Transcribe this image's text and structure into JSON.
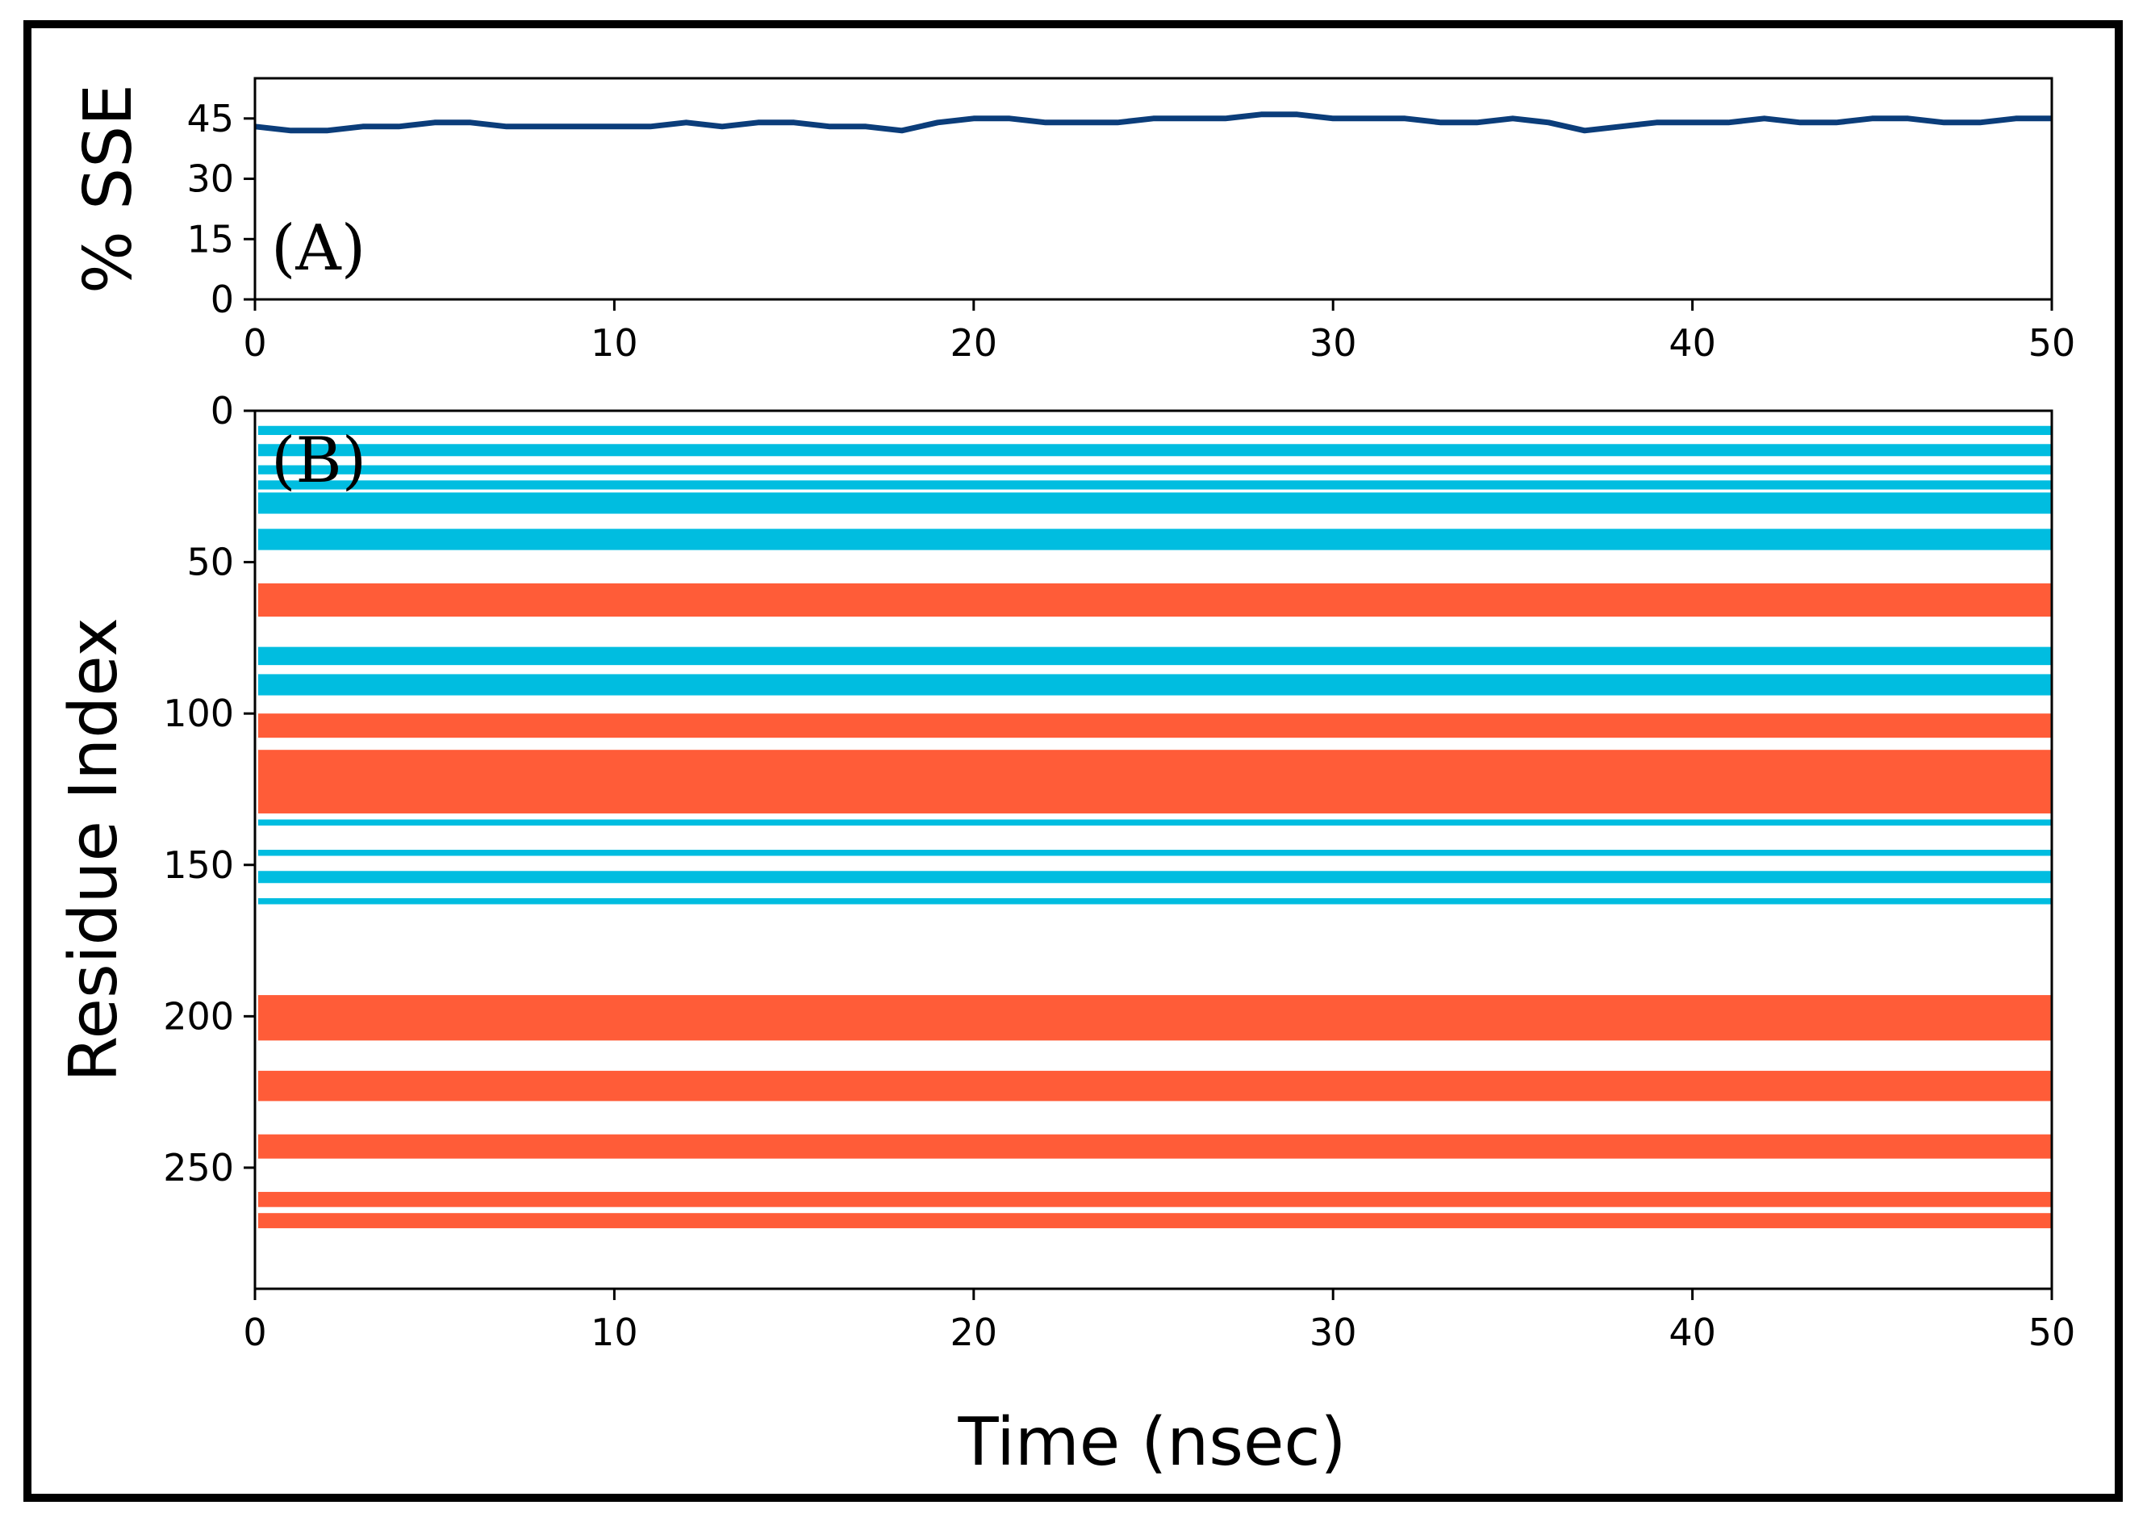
{
  "chart_data": [
    {
      "panel": "(A)",
      "type": "line",
      "ylabel": "% SSE",
      "xlabel": "",
      "xlim": [
        0,
        50
      ],
      "ylim": [
        0,
        55
      ],
      "xticks": [
        "0",
        "10",
        "20",
        "30",
        "40",
        "50"
      ],
      "yticks": [
        "0",
        "15",
        "30",
        "45"
      ],
      "color": "#0b3d7a",
      "series": [
        {
          "name": "% SSE",
          "x": [
            0,
            1,
            2,
            3,
            4,
            5,
            6,
            7,
            8,
            9,
            10,
            11,
            12,
            13,
            14,
            15,
            16,
            17,
            18,
            19,
            20,
            21,
            22,
            23,
            24,
            25,
            26,
            27,
            28,
            29,
            30,
            31,
            32,
            33,
            34,
            35,
            36,
            37,
            38,
            39,
            40,
            41,
            42,
            43,
            44,
            45,
            46,
            47,
            48,
            49,
            50
          ],
          "values": [
            43,
            42,
            42,
            43,
            43,
            44,
            44,
            43,
            43,
            43,
            43,
            43,
            44,
            43,
            44,
            44,
            43,
            43,
            42,
            44,
            45,
            45,
            44,
            44,
            44,
            45,
            45,
            45,
            46,
            46,
            45,
            45,
            45,
            44,
            44,
            45,
            44,
            42,
            43,
            44,
            44,
            44,
            45,
            44,
            44,
            45,
            45,
            44,
            44,
            45,
            45
          ]
        }
      ]
    },
    {
      "panel": "(B)",
      "type": "heatmap",
      "xlabel": "Time (nsec)",
      "ylabel": "Residue Index",
      "xlim": [
        0,
        50
      ],
      "ylim": [
        0,
        290
      ],
      "y_inverted": true,
      "xticks": [
        "0",
        "10",
        "20",
        "30",
        "40",
        "50"
      ],
      "yticks": [
        "0",
        "50",
        "100",
        "150",
        "200",
        "250"
      ],
      "colors": {
        "beta-strand": "#00bde0",
        "alpha-helix": "#ff5c38"
      },
      "bands": [
        {
          "type": "beta-strand",
          "start": 5,
          "end": 8
        },
        {
          "type": "beta-strand",
          "start": 11,
          "end": 15
        },
        {
          "type": "beta-strand",
          "start": 18,
          "end": 21
        },
        {
          "type": "beta-strand",
          "start": 23,
          "end": 26
        },
        {
          "type": "beta-strand",
          "start": 27,
          "end": 34
        },
        {
          "type": "beta-strand",
          "start": 39,
          "end": 46
        },
        {
          "type": "alpha-helix",
          "start": 57,
          "end": 68
        },
        {
          "type": "beta-strand",
          "start": 78,
          "end": 84
        },
        {
          "type": "beta-strand",
          "start": 87,
          "end": 94
        },
        {
          "type": "alpha-helix",
          "start": 100,
          "end": 108
        },
        {
          "type": "alpha-helix",
          "start": 112,
          "end": 133
        },
        {
          "type": "beta-strand",
          "start": 135,
          "end": 137
        },
        {
          "type": "beta-strand",
          "start": 145,
          "end": 147
        },
        {
          "type": "beta-strand",
          "start": 152,
          "end": 156
        },
        {
          "type": "beta-strand",
          "start": 161,
          "end": 163
        },
        {
          "type": "alpha-helix",
          "start": 193,
          "end": 208
        },
        {
          "type": "alpha-helix",
          "start": 218,
          "end": 228
        },
        {
          "type": "alpha-helix",
          "start": 239,
          "end": 247
        },
        {
          "type": "alpha-helix",
          "start": 258,
          "end": 263
        },
        {
          "type": "alpha-helix",
          "start": 265,
          "end": 270
        }
      ]
    }
  ]
}
